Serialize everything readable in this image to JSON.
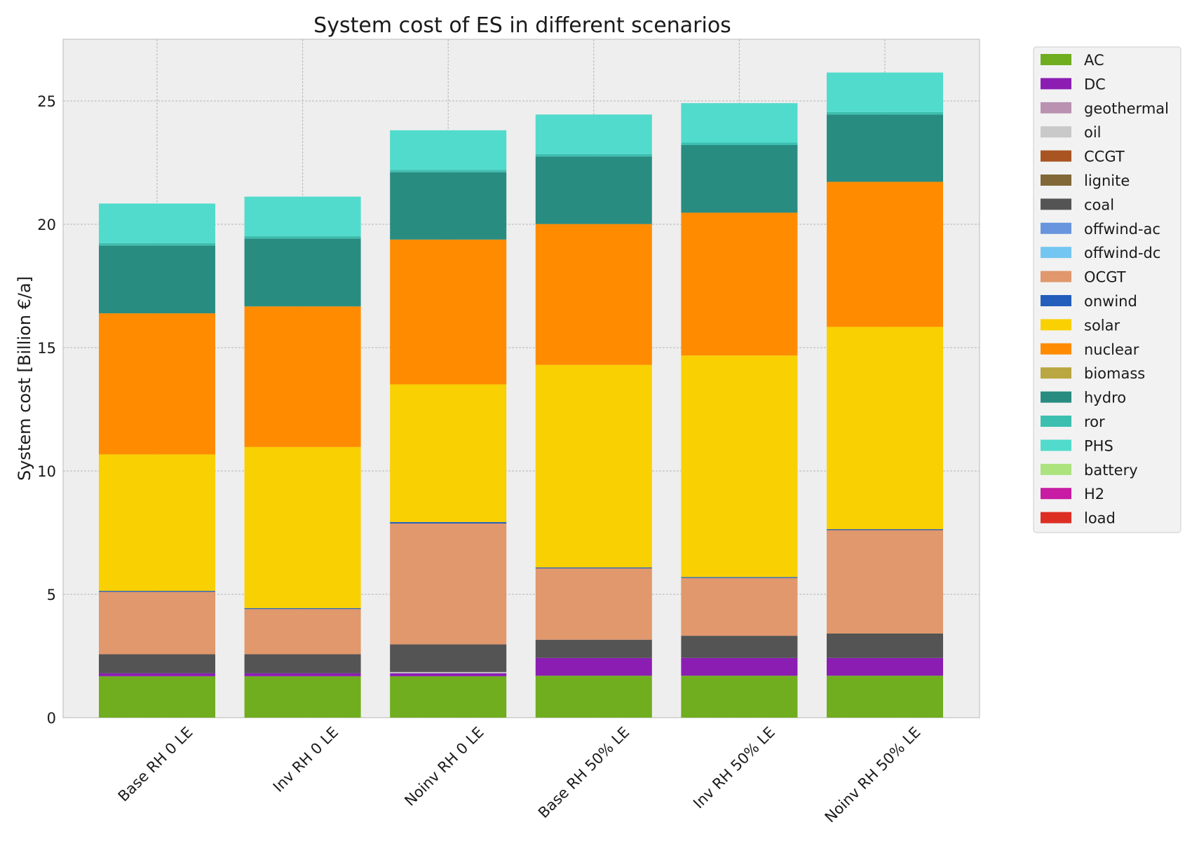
{
  "chart_data": {
    "type": "bar",
    "stacked": true,
    "title": "System cost of ES in different scenarios",
    "xlabel": "",
    "ylabel": "System cost [Billion €/a]",
    "ylim": [
      0,
      27.5
    ],
    "yticks": [
      0,
      5,
      10,
      15,
      20,
      25
    ],
    "grid": true,
    "legend_position": "outside-top-right",
    "categories": [
      "Base RH 0 LE",
      "Inv RH 0 LE",
      "Noinv RH 0 LE",
      "Base RH 50% LE",
      "Inv RH 50% LE",
      "Noinv RH 50% LE"
    ],
    "series": [
      {
        "name": "AC",
        "color": "#70AD1F",
        "values": [
          1.68,
          1.68,
          1.68,
          1.7,
          1.7,
          1.7
        ]
      },
      {
        "name": "DC",
        "color": "#8B1DB3",
        "values": [
          0.12,
          0.12,
          0.12,
          0.72,
          0.72,
          0.72
        ]
      },
      {
        "name": "geothermal",
        "color": "#BA91B1",
        "values": [
          0,
          0,
          0,
          0,
          0,
          0
        ]
      },
      {
        "name": "oil",
        "color": "#C9C9C9",
        "values": [
          0,
          0,
          0.05,
          0,
          0,
          0
        ]
      },
      {
        "name": "CCGT",
        "color": "#A85522",
        "values": [
          0,
          0,
          0,
          0,
          0,
          0
        ]
      },
      {
        "name": "lignite",
        "color": "#826837",
        "values": [
          0,
          0,
          0,
          0,
          0,
          0
        ]
      },
      {
        "name": "coal",
        "color": "#545454",
        "values": [
          0.77,
          0.77,
          1.12,
          0.74,
          0.9,
          0.99
        ]
      },
      {
        "name": "offwind-ac",
        "color": "#6895DD",
        "values": [
          0,
          0,
          0,
          0,
          0,
          0
        ]
      },
      {
        "name": "offwind-dc",
        "color": "#74C6F2",
        "values": [
          0,
          0,
          0,
          0,
          0,
          0
        ]
      },
      {
        "name": "OCGT",
        "color": "#E0986C",
        "values": [
          2.53,
          1.83,
          4.9,
          2.89,
          2.34,
          4.19
        ]
      },
      {
        "name": "onwind",
        "color": "#235EBC",
        "values": [
          0.04,
          0.04,
          0.06,
          0.04,
          0.04,
          0.04
        ]
      },
      {
        "name": "solar",
        "color": "#F9D002",
        "values": [
          5.53,
          6.53,
          5.58,
          8.21,
          8.98,
          8.2
        ]
      },
      {
        "name": "nuclear",
        "color": "#FF8C00",
        "values": [
          5.72,
          5.7,
          5.87,
          5.71,
          5.79,
          5.88
        ]
      },
      {
        "name": "biomass",
        "color": "#BAA741",
        "values": [
          0,
          0,
          0,
          0,
          0,
          0
        ]
      },
      {
        "name": "hydro",
        "color": "#298C81",
        "values": [
          2.75,
          2.75,
          2.73,
          2.74,
          2.74,
          2.73
        ]
      },
      {
        "name": "ror",
        "color": "#3DBFB0",
        "values": [
          0.1,
          0.1,
          0.1,
          0.1,
          0.1,
          0.1
        ]
      },
      {
        "name": "PHS",
        "color": "#51DBCC",
        "values": [
          1.6,
          1.6,
          1.6,
          1.6,
          1.6,
          1.6
        ]
      },
      {
        "name": "battery",
        "color": "#ACE37F",
        "values": [
          0,
          0,
          0,
          0,
          0,
          0
        ]
      },
      {
        "name": "H2",
        "color": "#C71CA3",
        "values": [
          0,
          0,
          0,
          0,
          0,
          0
        ]
      },
      {
        "name": "load",
        "color": "#DD2E23",
        "values": [
          0,
          0,
          0,
          0,
          0,
          0
        ]
      }
    ]
  }
}
